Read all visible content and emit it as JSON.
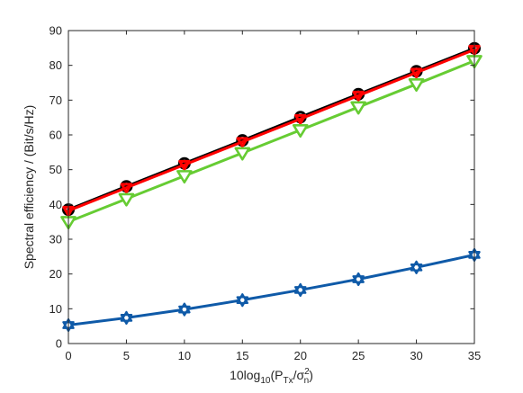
{
  "chart_data": {
    "type": "line",
    "title": "",
    "xlabel": {
      "prefix": "10log",
      "prefix_sub": "10",
      "open": "(P",
      "p_sub": "Tx",
      "slash": "/σ",
      "sigma_sup": "2",
      "sigma_sub": "n",
      "close": ")"
    },
    "ylabel": "Spectral efficiency / (Bit/s/Hz)",
    "xlim": [
      0,
      35
    ],
    "ylim": [
      0,
      90
    ],
    "xticks": [
      0,
      5,
      10,
      15,
      20,
      25,
      30,
      35
    ],
    "yticks": [
      0,
      10,
      20,
      30,
      40,
      50,
      60,
      70,
      80,
      90
    ],
    "grid": false,
    "x": [
      0,
      5,
      10,
      15,
      20,
      25,
      30,
      35
    ],
    "series": [
      {
        "values": [
          38.5,
          45.2,
          51.8,
          58.4,
          65.1,
          71.7,
          78.3,
          84.9
        ],
        "color": "#000000",
        "marker": "circle"
      },
      {
        "values": [
          38.2,
          44.8,
          51.4,
          58.0,
          64.6,
          71.3,
          77.9,
          84.5
        ],
        "color": "#ff0000",
        "marker": "triangle-down"
      },
      {
        "values": [
          35.0,
          41.6,
          48.2,
          54.8,
          61.4,
          68.0,
          74.6,
          81.3
        ],
        "color": "#66cc33",
        "marker": "triangle-down-open"
      },
      {
        "values": [
          5.3,
          7.4,
          9.8,
          12.5,
          15.4,
          18.5,
          21.9,
          25.5
        ],
        "color": "#0f5aa8",
        "marker": "hexagram"
      }
    ]
  }
}
